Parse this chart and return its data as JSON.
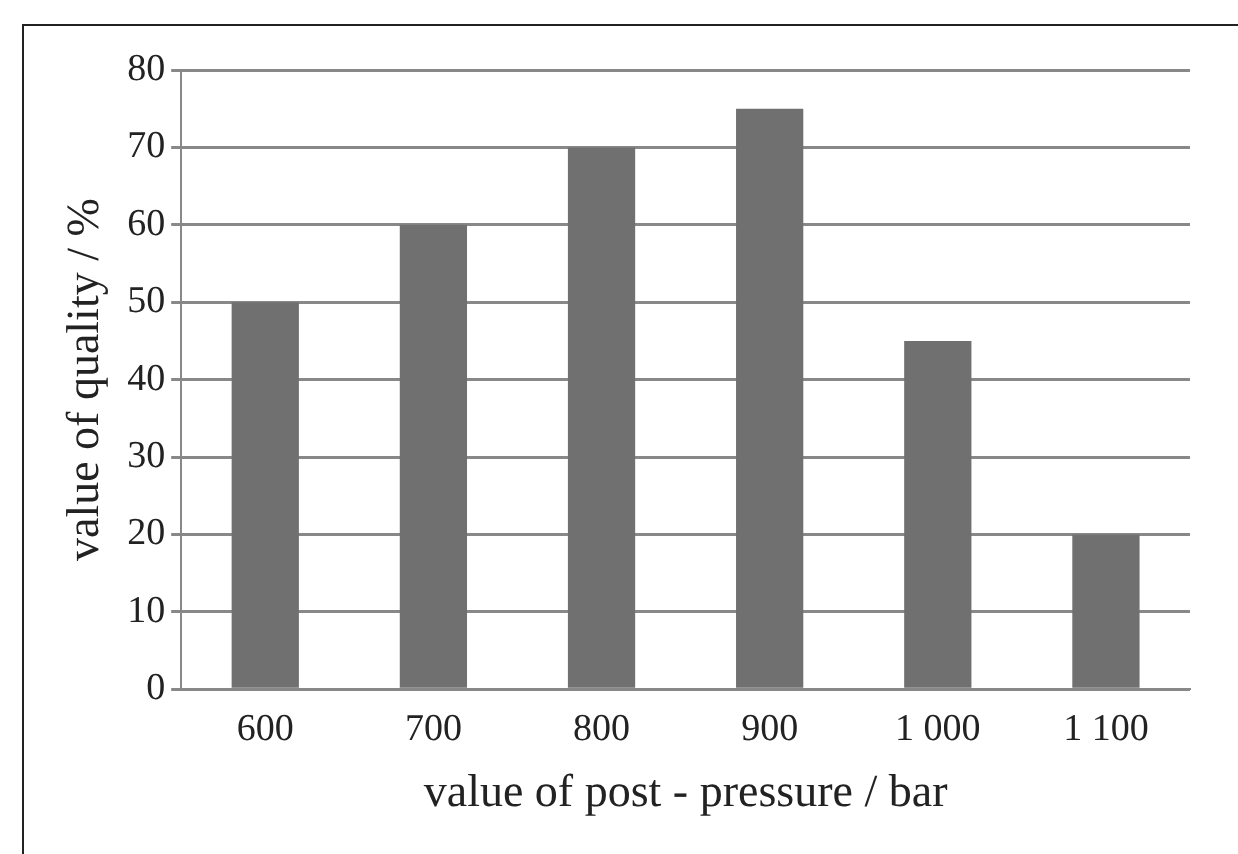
{
  "chart_data": {
    "type": "bar",
    "xlabel": "value of post - pressure / bar",
    "ylabel": "value of quality / %",
    "categories": [
      "600",
      "700",
      "800",
      "900",
      "1 000",
      "1 100"
    ],
    "values": [
      50,
      60,
      70,
      75,
      45,
      20
    ],
    "color": "#707070",
    "ylim": [
      0,
      80
    ],
    "yticks": [
      0,
      10,
      20,
      30,
      40,
      50,
      60,
      70,
      80
    ],
    "grid": "y",
    "legend": false
  }
}
